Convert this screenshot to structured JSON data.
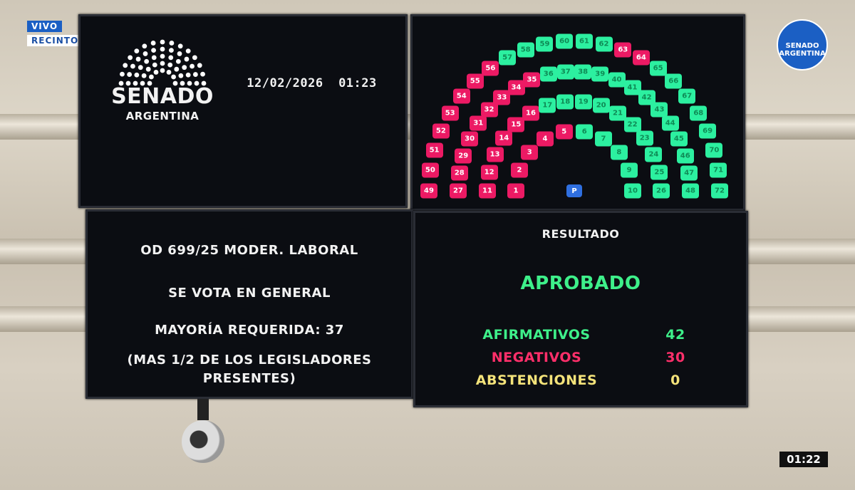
{
  "overlay": {
    "live": "VIVO",
    "channel": "RECINTO",
    "clock": "01:22",
    "corner_logo": "SENADO ARGENTINA"
  },
  "board": {
    "logo": {
      "title": "SENADO",
      "subtitle": "ARGENTINA"
    },
    "datetime": "12/02/2026  01:23",
    "item": "OD 699/25 MODER. LABORAL",
    "vote_type": "SE VOTA EN GENERAL",
    "majority": "MAYORÍA REQUERIDA: 37",
    "majority_note_1": "(MAS 1/2 DE LOS LEGISLADORES",
    "majority_note_2": "PRESENTES)",
    "result_label": "RESULTADO",
    "result": "APROBADO",
    "counts": [
      {
        "label": "AFIRMATIVOS",
        "value": "42",
        "color": "#3ef08a"
      },
      {
        "label": "NEGATIVOS",
        "value": "30",
        "color": "#ff2f6a"
      },
      {
        "label": "ABSTENCIONES",
        "value": "0",
        "color": "#f4e37a"
      }
    ],
    "president_label": "P",
    "colors": {
      "yes": "#2cf0a0",
      "no": "#ec1a64",
      "president": "#2f6fe0"
    },
    "rows": [
      [
        1,
        10
      ],
      [
        11,
        26
      ],
      [
        27,
        48
      ],
      [
        49,
        72
      ]
    ],
    "negative_seats": [
      1,
      2,
      3,
      4,
      5,
      11,
      12,
      13,
      14,
      15,
      16,
      27,
      28,
      29,
      30,
      31,
      32,
      33,
      34,
      35,
      49,
      50,
      51,
      52,
      53,
      54,
      55,
      56,
      63,
      64
    ]
  }
}
